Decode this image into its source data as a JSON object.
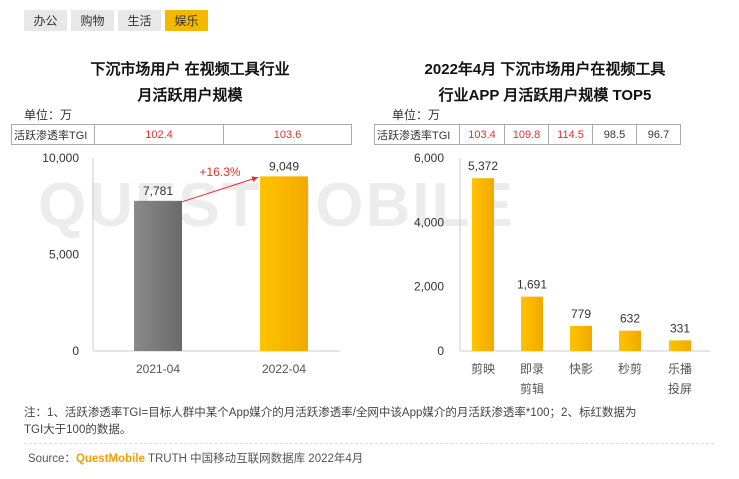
{
  "tabs": [
    {
      "label": "办公",
      "active": false
    },
    {
      "label": "购物",
      "active": false
    },
    {
      "label": "生活",
      "active": false
    },
    {
      "label": "娱乐",
      "active": true
    }
  ],
  "watermark": "QUESTMOBILE",
  "chart_data": [
    {
      "type": "bar",
      "title_line1": "下沉市场用户 在视频工具行业",
      "title_line2": "月活跃用户规模",
      "unit": "单位：万",
      "tgi_label": "活跃渗透率TGI",
      "tgi_values": [
        "102.4",
        "103.6"
      ],
      "categories": [
        "2021-04",
        "2022-04"
      ],
      "values": [
        7781,
        9049
      ],
      "value_labels": [
        "7,781",
        "9,049"
      ],
      "bar_colors": [
        "#7a7a7a",
        "#f5b800"
      ],
      "yticks": [
        "10,000",
        "5,000",
        "0"
      ],
      "ytick_values": [
        10000,
        5000,
        0
      ],
      "ylim": [
        0,
        10000
      ],
      "growth_label": "+16.3%",
      "growth_color": "#e23030"
    },
    {
      "type": "bar",
      "title_line1": "2022年4月 下沉市场用户在视频工具",
      "title_line2": "行业APP 月活跃用户规模 TOP5",
      "unit": "单位：万",
      "tgi_label": "活跃渗透率TGI",
      "tgi_values": [
        "103.4",
        "109.8",
        "114.5",
        "98.5",
        "96.7"
      ],
      "tgi_highlight": [
        true,
        true,
        true,
        false,
        false
      ],
      "categories": [
        [
          "剪映"
        ],
        [
          "即录",
          "剪辑"
        ],
        [
          "快影"
        ],
        [
          "秒剪"
        ],
        [
          "乐播",
          "投屏"
        ]
      ],
      "values": [
        5372,
        1691,
        779,
        632,
        331
      ],
      "value_labels": [
        "5,372",
        "1,691",
        "779",
        "632",
        "331"
      ],
      "bar_color": "#f5b800",
      "yticks": [
        "6,000",
        "4,000",
        "2,000",
        "0"
      ],
      "ytick_values": [
        6000,
        4000,
        2000,
        0
      ],
      "ylim": [
        0,
        6000
      ]
    }
  ],
  "note_line1": "注：1、活跃渗透率TGI=目标人群中某个App媒介的月活跃渗透率/全网中该App媒介的月活跃渗透率*100；2、标红数据为",
  "note_line2": "TGI大于100的数据。",
  "source_prefix": "Source：",
  "source_brand": "QuestMobile",
  "source_rest": " TRUTH 中国移动互联网数据库 2022年4月"
}
